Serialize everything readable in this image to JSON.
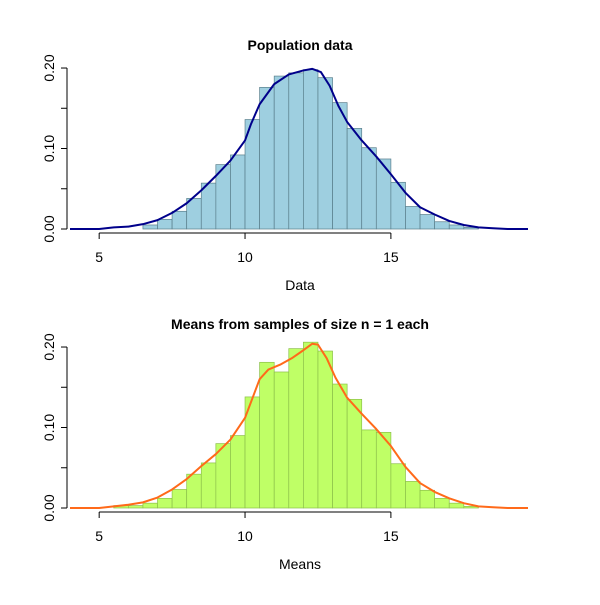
{
  "chart_data": [
    {
      "type": "bar",
      "title": "Population data",
      "xlabel": "Data",
      "ylabel": "",
      "xlim": [
        4,
        19.7
      ],
      "ylim": [
        0,
        0.205
      ],
      "x_ticks": [
        5,
        10,
        15
      ],
      "y_ticks": [
        0.0,
        0.1,
        0.2
      ],
      "x_tick_labels": [
        "5",
        "10",
        "15"
      ],
      "y_tick_labels": [
        "0.00",
        "0.10",
        "0.20"
      ],
      "bin_width": 0.5,
      "bins": [
        6.5,
        7.0,
        7.5,
        8.0,
        8.5,
        9.0,
        9.5,
        10.0,
        10.5,
        11.0,
        11.5,
        12.0,
        12.5,
        13.0,
        13.5,
        14.0,
        14.5,
        15.0,
        15.5,
        16.0,
        16.5,
        17.0,
        17.5
      ],
      "values": [
        0.005,
        0.012,
        0.022,
        0.038,
        0.057,
        0.08,
        0.092,
        0.136,
        0.176,
        0.19,
        0.194,
        0.198,
        0.188,
        0.157,
        0.125,
        0.101,
        0.087,
        0.058,
        0.028,
        0.018,
        0.009,
        0.005,
        0.002
      ],
      "bar_fill": "#9ecfe0",
      "bar_stroke": "#5a7f8c",
      "density_x": [
        4.0,
        5.0,
        5.5,
        6.0,
        6.5,
        7.0,
        7.5,
        8.0,
        8.5,
        9.0,
        9.5,
        10.0,
        10.2,
        10.5,
        11.0,
        11.5,
        12.0,
        12.3,
        12.6,
        12.9,
        13.2,
        13.5,
        14.0,
        14.5,
        15.0,
        15.5,
        16.0,
        16.5,
        17.0,
        17.5,
        18.0,
        18.5,
        19.0,
        19.7
      ],
      "density_y": [
        0.0,
        0.0,
        0.002,
        0.003,
        0.006,
        0.011,
        0.02,
        0.032,
        0.048,
        0.066,
        0.085,
        0.11,
        0.13,
        0.155,
        0.18,
        0.192,
        0.197,
        0.199,
        0.195,
        0.178,
        0.153,
        0.133,
        0.11,
        0.09,
        0.068,
        0.045,
        0.027,
        0.018,
        0.01,
        0.005,
        0.002,
        0.001,
        0.0,
        0.0
      ],
      "line_color": "#00008b"
    },
    {
      "type": "bar",
      "title": "Means from samples of size n = 1 each",
      "xlabel": "Means",
      "ylabel": "",
      "xlim": [
        4,
        19.7
      ],
      "ylim": [
        0,
        0.205
      ],
      "x_ticks": [
        5,
        10,
        15
      ],
      "y_ticks": [
        0.0,
        0.1,
        0.2
      ],
      "x_tick_labels": [
        "5",
        "10",
        "15"
      ],
      "y_tick_labels": [
        "0.00",
        "0.10",
        "0.20"
      ],
      "bin_width": 0.5,
      "bins": [
        5.5,
        6.0,
        6.5,
        7.0,
        7.5,
        8.0,
        8.5,
        9.0,
        9.5,
        10.0,
        10.5,
        11.0,
        11.5,
        12.0,
        12.5,
        13.0,
        13.5,
        14.0,
        14.5,
        15.0,
        15.5,
        16.0,
        16.5,
        17.0,
        17.5
      ],
      "values": [
        0.003,
        0.003,
        0.006,
        0.012,
        0.023,
        0.042,
        0.056,
        0.08,
        0.09,
        0.138,
        0.181,
        0.169,
        0.198,
        0.206,
        0.195,
        0.154,
        0.135,
        0.097,
        0.094,
        0.055,
        0.033,
        0.022,
        0.012,
        0.006,
        0.002
      ],
      "bar_fill": "#bfff66",
      "bar_stroke": "#8cc04a",
      "density_x": [
        4.0,
        5.0,
        5.5,
        6.0,
        6.5,
        7.0,
        7.5,
        8.0,
        8.5,
        9.0,
        9.5,
        10.0,
        10.5,
        10.8,
        11.2,
        11.6,
        12.0,
        12.3,
        12.5,
        12.8,
        13.1,
        13.5,
        14.0,
        14.5,
        15.0,
        15.5,
        16.0,
        16.5,
        17.0,
        17.5,
        18.0,
        18.5,
        19.0,
        19.7
      ],
      "density_y": [
        0.0,
        0.0,
        0.002,
        0.004,
        0.007,
        0.013,
        0.023,
        0.036,
        0.052,
        0.067,
        0.085,
        0.112,
        0.16,
        0.172,
        0.178,
        0.186,
        0.196,
        0.204,
        0.203,
        0.186,
        0.162,
        0.137,
        0.117,
        0.098,
        0.077,
        0.051,
        0.031,
        0.02,
        0.012,
        0.006,
        0.002,
        0.001,
        0.0,
        0.0
      ],
      "line_color": "#ff6a1a"
    }
  ]
}
